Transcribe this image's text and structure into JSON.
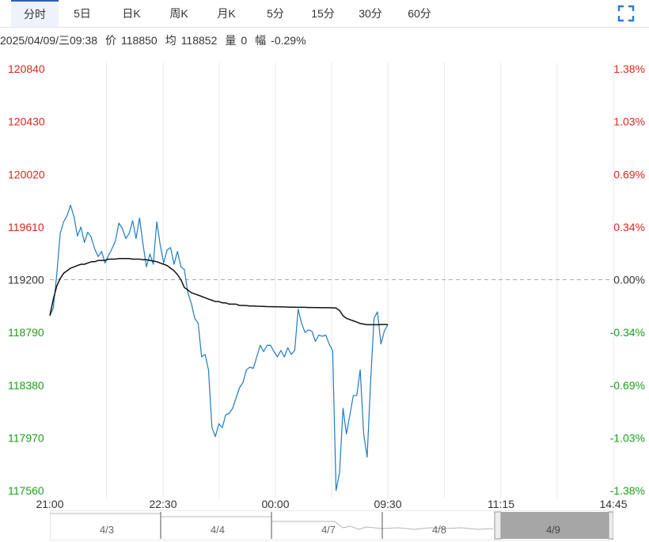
{
  "tabs": [
    {
      "label": "分时",
      "active": true
    },
    {
      "label": "5日"
    },
    {
      "label": "日K"
    },
    {
      "label": "周K"
    },
    {
      "label": "月K"
    },
    {
      "label": "5分"
    },
    {
      "label": "15分"
    },
    {
      "label": "30分"
    },
    {
      "label": "60分"
    }
  ],
  "fullscreen_icon": "fullscreen-icon",
  "info": {
    "datetime": "2025/04/09/三09:38",
    "price_label": "价",
    "price": "118850",
    "avg_label": "均",
    "avg": "118852",
    "volume_label": "量",
    "volume": "0",
    "change_label": "幅",
    "change": "-0.29%"
  },
  "colors": {
    "up": "#e0251e",
    "down": "#1a9e1a",
    "price_line": "#1f7bc2",
    "avg_line": "#111111",
    "grid": "#e8e8e8",
    "baseline": "#aaaaaa"
  },
  "chart_data": {
    "type": "line",
    "title": "",
    "xlabel": "",
    "ylabel": "",
    "ylim": [
      117560,
      120840
    ],
    "y_ticks_left": [
      "120840",
      "120430",
      "120020",
      "119610",
      "119200",
      "118790",
      "118380",
      "117970",
      "117560"
    ],
    "y_ticks_right": [
      "1.38%",
      "1.03%",
      "0.69%",
      "0.34%",
      "0.00%",
      "-0.34%",
      "-0.69%",
      "-1.03%",
      "-1.38%"
    ],
    "prev_close": 119200,
    "x_ticks": [
      "21:00",
      "22:30",
      "00:00",
      "09:30",
      "11:15",
      "14:45"
    ],
    "grid": true,
    "series": [
      {
        "values": [
          118920,
          118980,
          119240,
          119560,
          119650,
          119700,
          119780,
          119690,
          119540,
          119610,
          119490,
          119570,
          119530,
          119440,
          119380,
          119420,
          119330,
          119390,
          119440,
          119500,
          119640,
          119600,
          119520,
          119560,
          119660,
          119520,
          119680,
          119480,
          119300,
          119400,
          119320,
          119650,
          119470,
          119330,
          119430,
          119450,
          119320,
          119420,
          119300,
          119280,
          119100,
          119020,
          118900,
          118860,
          118600,
          118620,
          118500,
          118050,
          117980,
          118080,
          118050,
          118150,
          118160,
          118200,
          118280,
          118360,
          118400,
          118500,
          118520,
          118510,
          118600,
          118690,
          118640,
          118690,
          118690,
          118640,
          118600,
          118650,
          118600,
          118670,
          118620,
          118650,
          118970,
          118860,
          118790,
          118810,
          118800,
          118720,
          118770,
          118760,
          118770,
          118700,
          118650,
          117560,
          117700,
          118200,
          118000,
          118150,
          118300,
          118300,
          118500,
          118000,
          117820,
          118400,
          118900,
          118950,
          118700,
          118800,
          118850
        ],
        "color": "#1f7bc2"
      },
      {
        "values": [
          118920,
          119050,
          119150,
          119210,
          119250,
          119270,
          119290,
          119300,
          119310,
          119320,
          119320,
          119330,
          119340,
          119340,
          119350,
          119350,
          119350,
          119360,
          119360,
          119360,
          119365,
          119365,
          119365,
          119365,
          119360,
          119360,
          119360,
          119355,
          119355,
          119350,
          119345,
          119340,
          119330,
          119320,
          119310,
          119290,
          119270,
          119240,
          119200,
          119140,
          119120,
          119100,
          119090,
          119080,
          119070,
          119060,
          119050,
          119040,
          119030,
          119030,
          119020,
          119020,
          119010,
          119010,
          119010,
          119000,
          119000,
          118998,
          118996,
          118995,
          118994,
          118993,
          118992,
          118991,
          118990,
          118990,
          118989,
          118988,
          118988,
          118987,
          118986,
          118986,
          118985,
          118985,
          118985,
          118984,
          118984,
          118983,
          118983,
          118982,
          118982,
          118982,
          118981,
          118980,
          118960,
          118920,
          118900,
          118890,
          118880,
          118870,
          118860,
          118855,
          118850,
          118850,
          118850,
          118850,
          118852,
          118852,
          118852
        ],
        "color": "#111111"
      }
    ]
  },
  "navigator": {
    "labels": [
      "4/3",
      "4/4",
      "4/7",
      "4/8",
      "4/9"
    ]
  }
}
